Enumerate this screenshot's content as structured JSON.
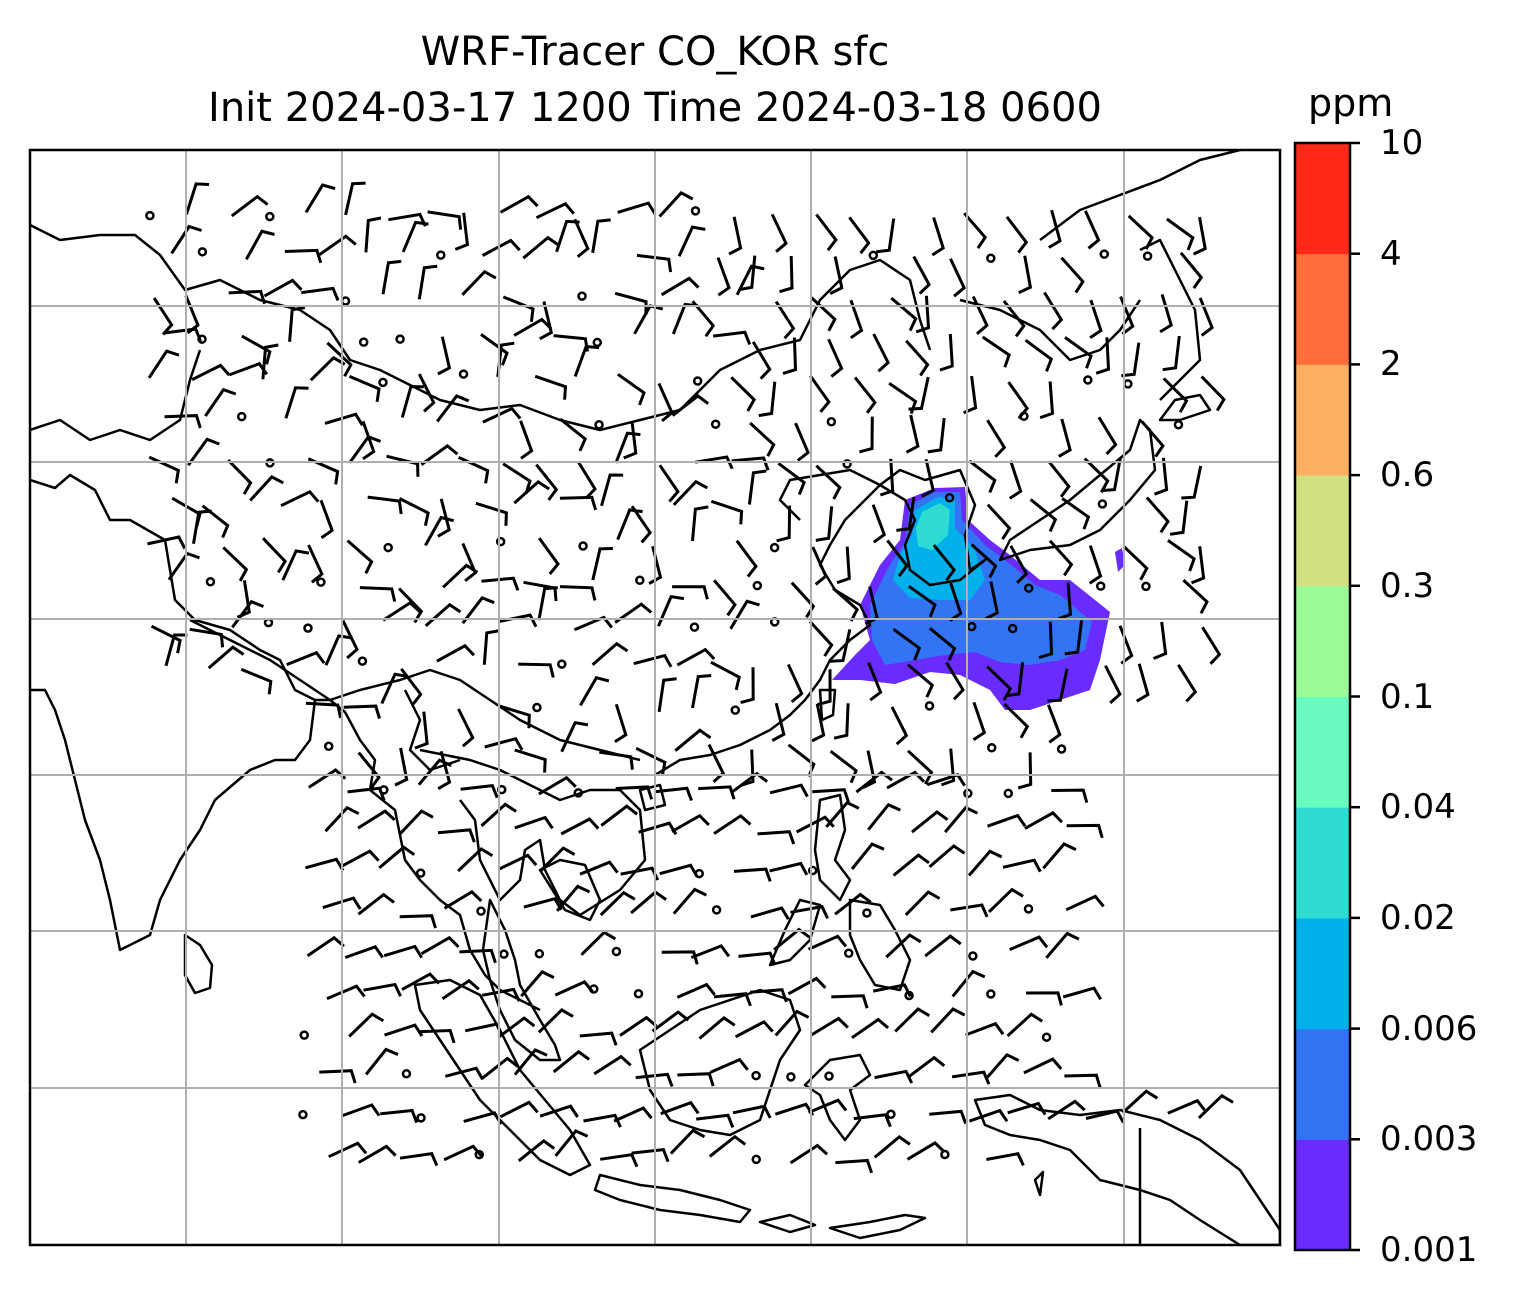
{
  "title": {
    "line1": "WRF-Tracer CO_KOR sfc",
    "line2": "Init 2024-03-17 1200 Time 2024-03-18 0600"
  },
  "map": {
    "variable": "CO_KOR",
    "level": "sfc",
    "overlay": "wind barbs",
    "gridlines": true,
    "basemap": "coastlines"
  },
  "colorbar": {
    "unit": "ppm",
    "ticks": [
      "0.001",
      "0.003",
      "0.006",
      "0.02",
      "0.04",
      "0.1",
      "0.3",
      "0.6",
      "2",
      "4",
      "10"
    ],
    "colors": [
      "#6a2cfd",
      "#3274f4",
      "#00b1ea",
      "#2fdcd2",
      "#69fbc0",
      "#9bfb96",
      "#d2e084",
      "#feb062",
      "#ff6f3c",
      "#ff2819"
    ]
  }
}
